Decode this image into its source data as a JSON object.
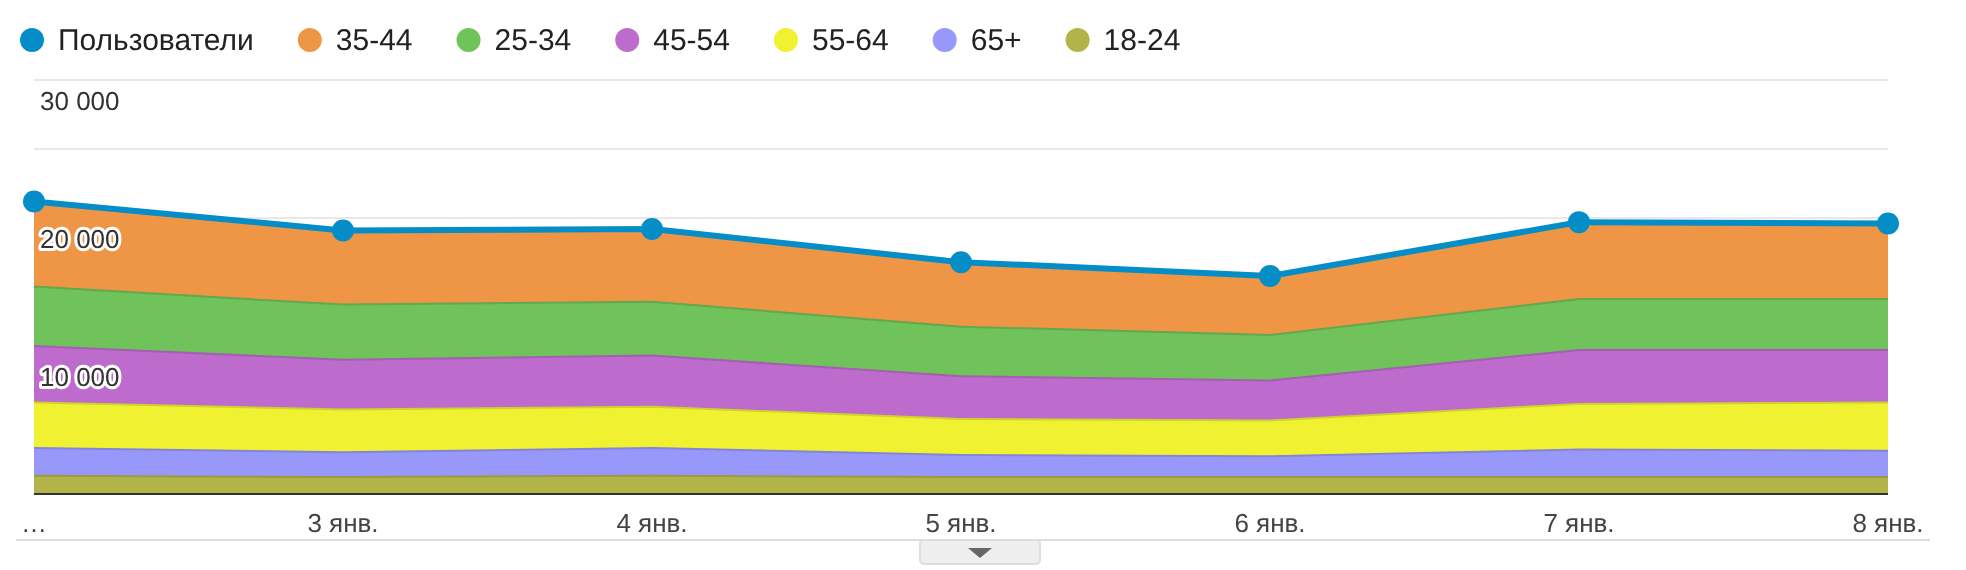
{
  "chart_data": {
    "type": "area",
    "stacked": true,
    "categories": [
      "…",
      "3 янв.",
      "4 янв.",
      "5 янв.",
      "6 янв.",
      "7 янв.",
      "8 янв."
    ],
    "series": [
      {
        "name": "Пользователи",
        "type": "line",
        "marker": "circle",
        "color": "#058dc7",
        "values": [
          21200,
          19100,
          19200,
          16800,
          15800,
          19700,
          19600
        ]
      },
      {
        "name": "18-24",
        "color": "#b2b349",
        "values": [
          1400,
          1300,
          1400,
          1300,
          1300,
          1300,
          1300
        ]
      },
      {
        "name": "65+",
        "color": "#9898fa",
        "values": [
          2000,
          1800,
          2000,
          1600,
          1500,
          2000,
          1900
        ]
      },
      {
        "name": "55-64",
        "color": "#f0f231",
        "values": [
          3300,
          3100,
          3000,
          2600,
          2600,
          3300,
          3500
        ]
      },
      {
        "name": "45-54",
        "color": "#bd6ccd",
        "values": [
          4100,
          3600,
          3700,
          3100,
          2900,
          3900,
          3800
        ]
      },
      {
        "name": "25-34",
        "color": "#70c25a",
        "values": [
          4300,
          4000,
          3900,
          3600,
          3300,
          3700,
          3700
        ]
      },
      {
        "name": "35-44",
        "color": "#ee9646",
        "values": [
          6100,
          5300,
          5200,
          4600,
          4200,
          5500,
          5400
        ]
      }
    ],
    "ylim": [
      0,
      30000
    ],
    "yticks": [
      {
        "value": 10000,
        "label": "10 000"
      },
      {
        "value": 20000,
        "label": "20 000"
      },
      {
        "value": 25000,
        "label": null
      },
      {
        "value": 30000,
        "label": "30 000"
      }
    ],
    "grid": "y",
    "legend": "top"
  }
}
